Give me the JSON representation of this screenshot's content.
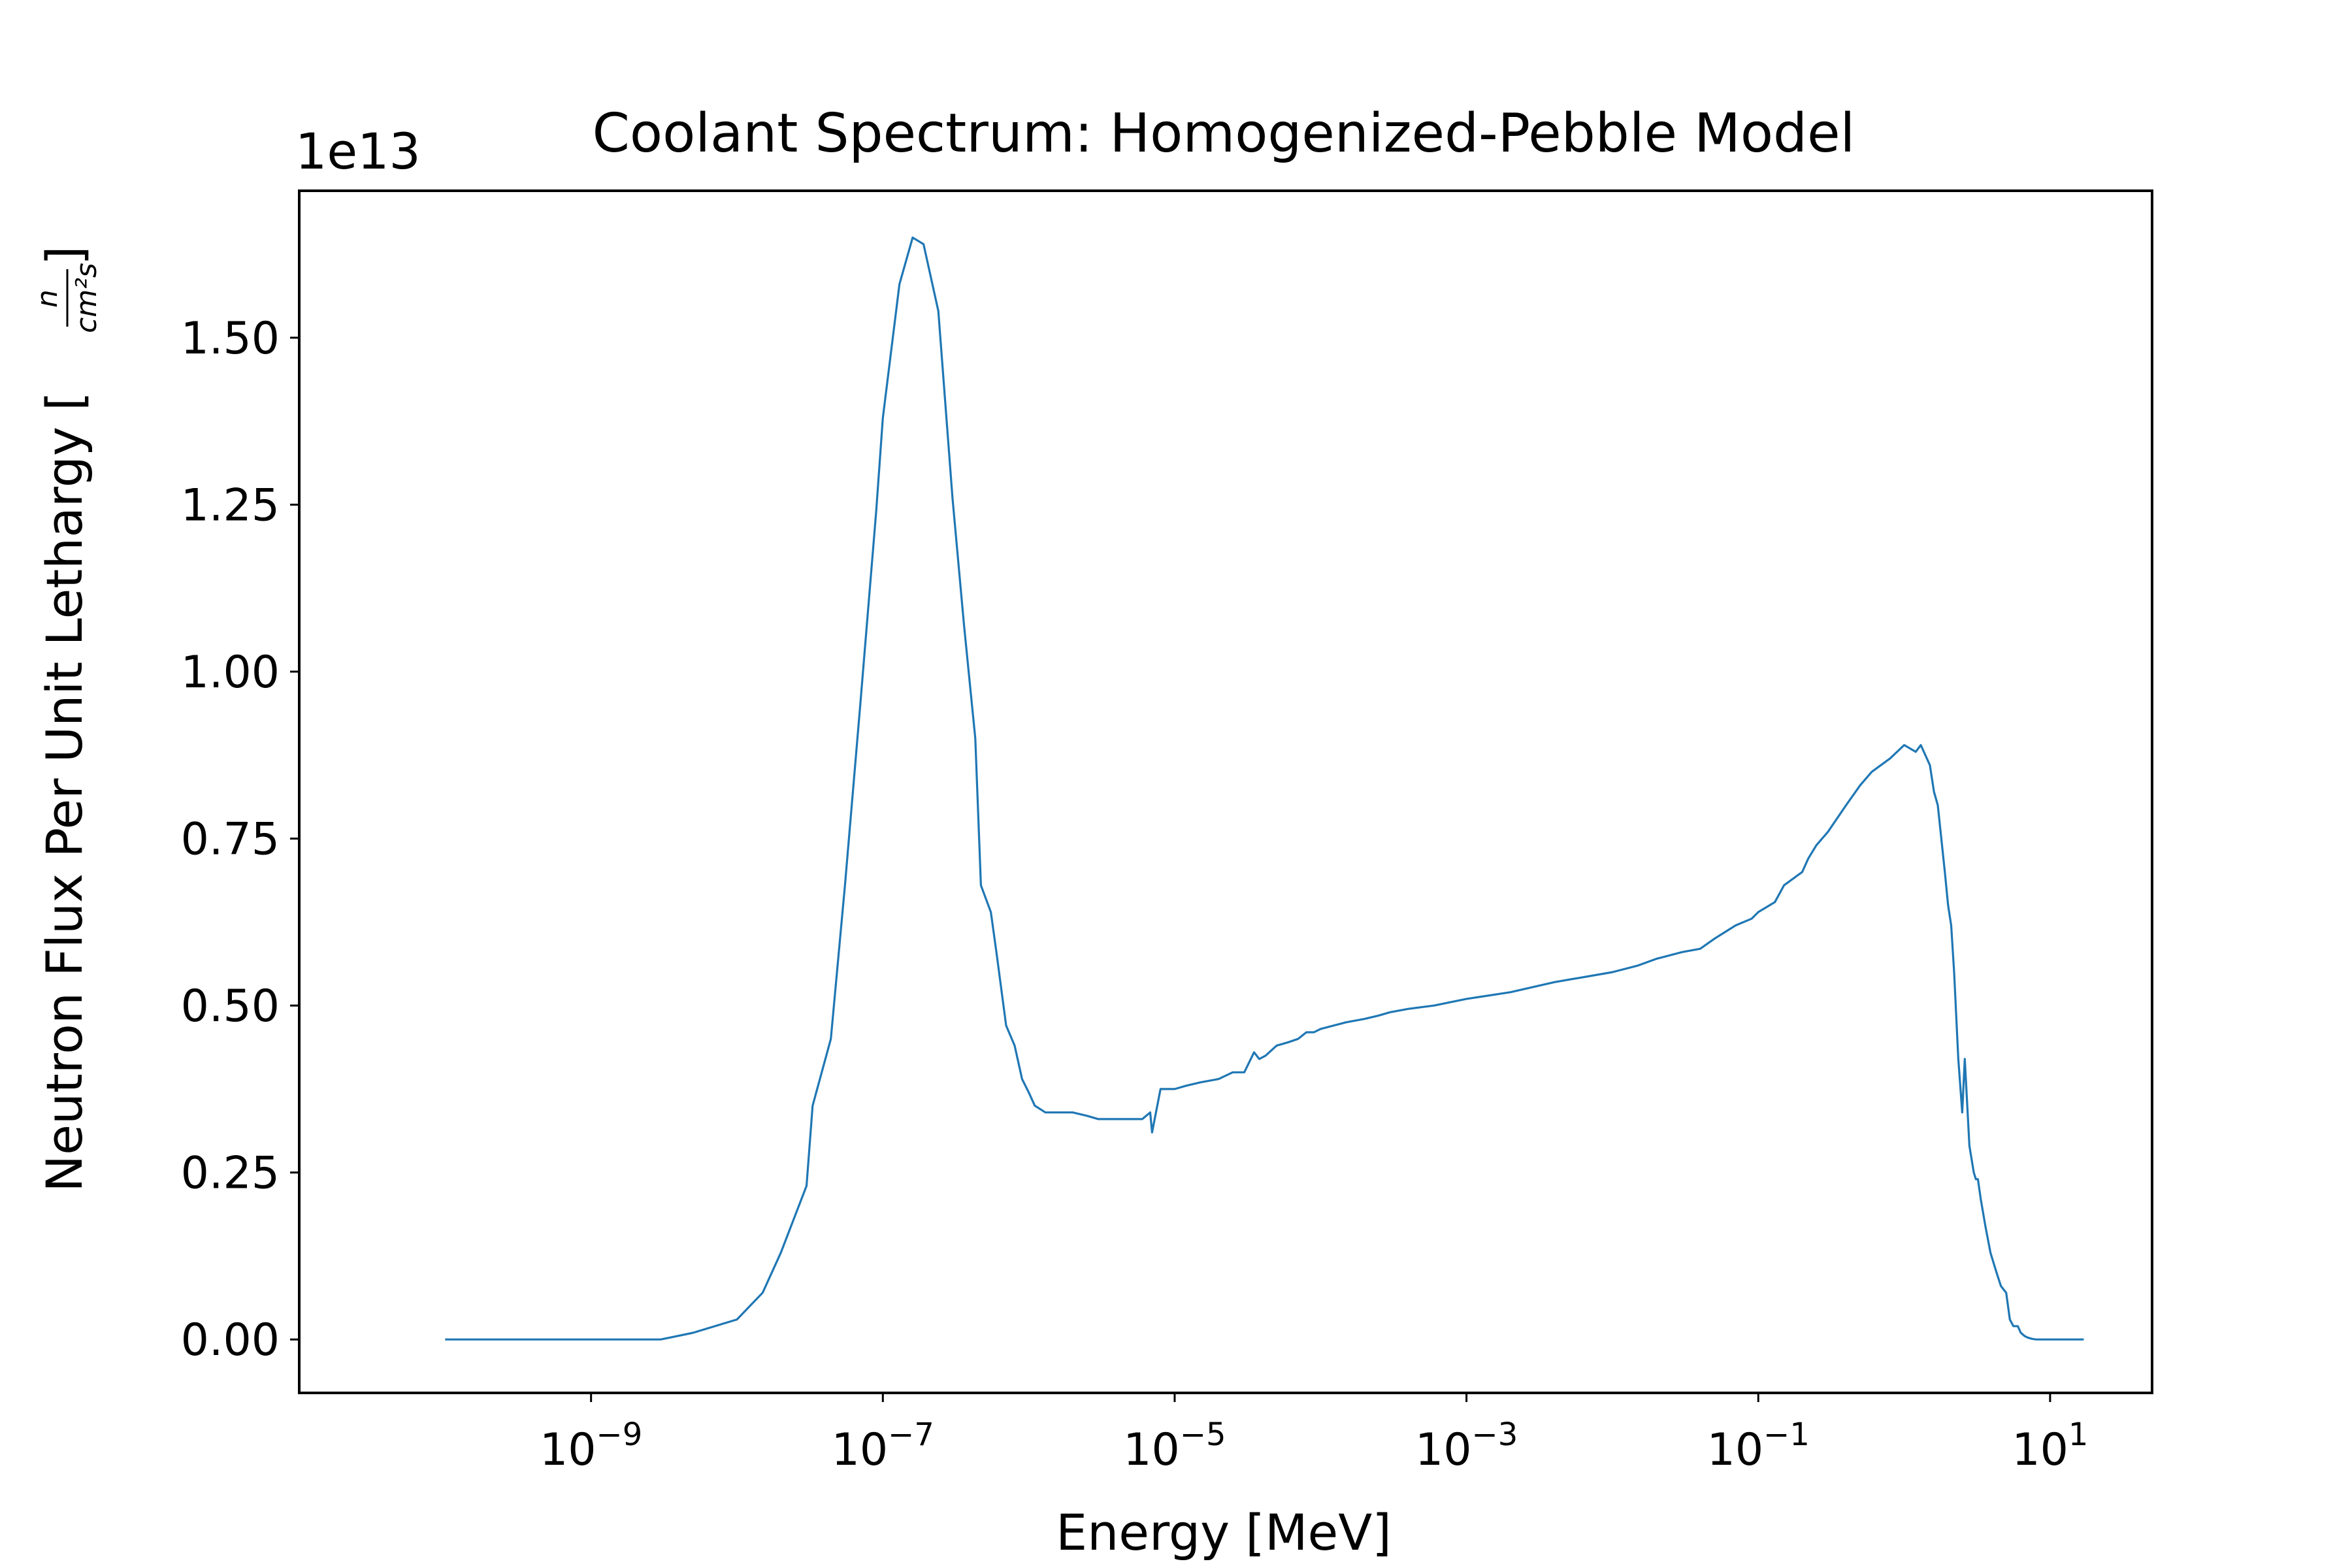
{
  "colors": {
    "line": "#1f77b4",
    "axes": "#000000",
    "background": "#ffffff"
  },
  "chart_data": {
    "type": "line",
    "title": "Coolant Spectrum: Homogenized-Pebble Model",
    "xlabel": "Energy [MeV]",
    "ylabel": "Neutron Flux Per Unit Lethargy",
    "ylabel_unit": {
      "numerator": "n",
      "denominator": "cm²s"
    },
    "x_scale": "log",
    "y_offset_label": "1e13",
    "y_multiplier": 10000000000000.0,
    "xlim": [
      1e-11,
      50
    ],
    "ylim": [
      -0.08,
      1.72
    ],
    "x_ticks": [
      {
        "value": 1e-09,
        "base": "10",
        "exp": "−9"
      },
      {
        "value": 1e-07,
        "base": "10",
        "exp": "−7"
      },
      {
        "value": 1e-05,
        "base": "10",
        "exp": "−5"
      },
      {
        "value": 0.001,
        "base": "10",
        "exp": "−3"
      },
      {
        "value": 0.1,
        "base": "10",
        "exp": "−1"
      },
      {
        "value": 10,
        "base": "10",
        "exp": "1"
      }
    ],
    "y_ticks": [
      {
        "value": 0.0,
        "label": "0.00"
      },
      {
        "value": 0.25,
        "label": "0.25"
      },
      {
        "value": 0.5,
        "label": "0.50"
      },
      {
        "value": 0.75,
        "label": "0.75"
      },
      {
        "value": 1.0,
        "label": "1.00"
      },
      {
        "value": 1.25,
        "label": "1.25"
      },
      {
        "value": 1.5,
        "label": "1.50"
      }
    ],
    "grid": false,
    "legend": false,
    "series": [
      {
        "x": [
          1e-10,
          3e-09,
          5e-09,
          1e-08,
          1.5e-08,
          2e-08,
          3e-08,
          3.3e-08,
          4.4e-08,
          5.5e-08,
          7e-08,
          9e-08,
          1e-07,
          1.3e-07,
          1.6e-07,
          1.9e-07,
          2.4e-07,
          3e-07,
          3.6e-07,
          4.3e-07,
          4.7e-07,
          5.5e-07,
          6e-07,
          7e-07,
          8e-07,
          9e-07,
          1e-06,
          1.1e-06,
          1.3e-06,
          2e-06,
          2.5e-06,
          3e-06,
          4e-06,
          5e-06,
          6e-06,
          6.8e-06,
          7e-06,
          8e-06,
          1e-05,
          1.2e-05,
          1.5e-05,
          2e-05,
          2.5e-05,
          3e-05,
          3.5e-05,
          3.8e-05,
          4.2e-05,
          5e-05,
          6e-05,
          7e-05,
          8e-05,
          9e-05,
          0.0001,
          0.00015,
          0.0002,
          0.00025,
          0.0003,
          0.0004,
          0.0006,
          0.001,
          0.002,
          0.004,
          0.01,
          0.015,
          0.02,
          0.03,
          0.04,
          0.05,
          0.07,
          0.09,
          0.1,
          0.13,
          0.15,
          0.2,
          0.22,
          0.25,
          0.3,
          0.4,
          0.5,
          0.6,
          0.8,
          1.0,
          1.2,
          1.3,
          1.5,
          1.6,
          1.7,
          1.9,
          2.0,
          2.1,
          2.2,
          2.35,
          2.5,
          2.6,
          2.8,
          3.0,
          3.1,
          3.2,
          3.35,
          3.6,
          3.9,
          4.3,
          4.6,
          5.0,
          5.3,
          5.6,
          6.0,
          6.3,
          6.7,
          7.0,
          7.5,
          8.0,
          9.0,
          10.0,
          11.0,
          12.0,
          14.0,
          17.0
        ],
        "y": [
          0.0,
          0.0,
          0.01,
          0.03,
          0.07,
          0.13,
          0.23,
          0.35,
          0.45,
          0.68,
          0.95,
          1.24,
          1.38,
          1.58,
          1.65,
          1.64,
          1.54,
          1.26,
          1.07,
          0.9,
          0.68,
          0.64,
          0.58,
          0.47,
          0.44,
          0.39,
          0.37,
          0.35,
          0.34,
          0.34,
          0.335,
          0.33,
          0.33,
          0.33,
          0.33,
          0.34,
          0.31,
          0.375,
          0.375,
          0.38,
          0.385,
          0.39,
          0.4,
          0.4,
          0.43,
          0.42,
          0.425,
          0.44,
          0.445,
          0.45,
          0.46,
          0.46,
          0.465,
          0.475,
          0.48,
          0.485,
          0.49,
          0.495,
          0.5,
          0.51,
          0.52,
          0.535,
          0.55,
          0.56,
          0.57,
          0.58,
          0.585,
          0.6,
          0.62,
          0.63,
          0.64,
          0.655,
          0.68,
          0.7,
          0.72,
          0.74,
          0.76,
          0.8,
          0.83,
          0.85,
          0.87,
          0.89,
          0.88,
          0.89,
          0.86,
          0.82,
          0.8,
          0.7,
          0.65,
          0.62,
          0.55,
          0.42,
          0.34,
          0.42,
          0.29,
          0.25,
          0.24,
          0.24,
          0.21,
          0.17,
          0.13,
          0.1,
          0.08,
          0.07,
          0.03,
          0.02,
          0.02,
          0.01,
          0.005,
          0.003,
          0.001,
          0.0,
          0.0,
          0.0,
          0.0,
          0.0,
          0.0,
          0.0
        ]
      }
    ]
  }
}
